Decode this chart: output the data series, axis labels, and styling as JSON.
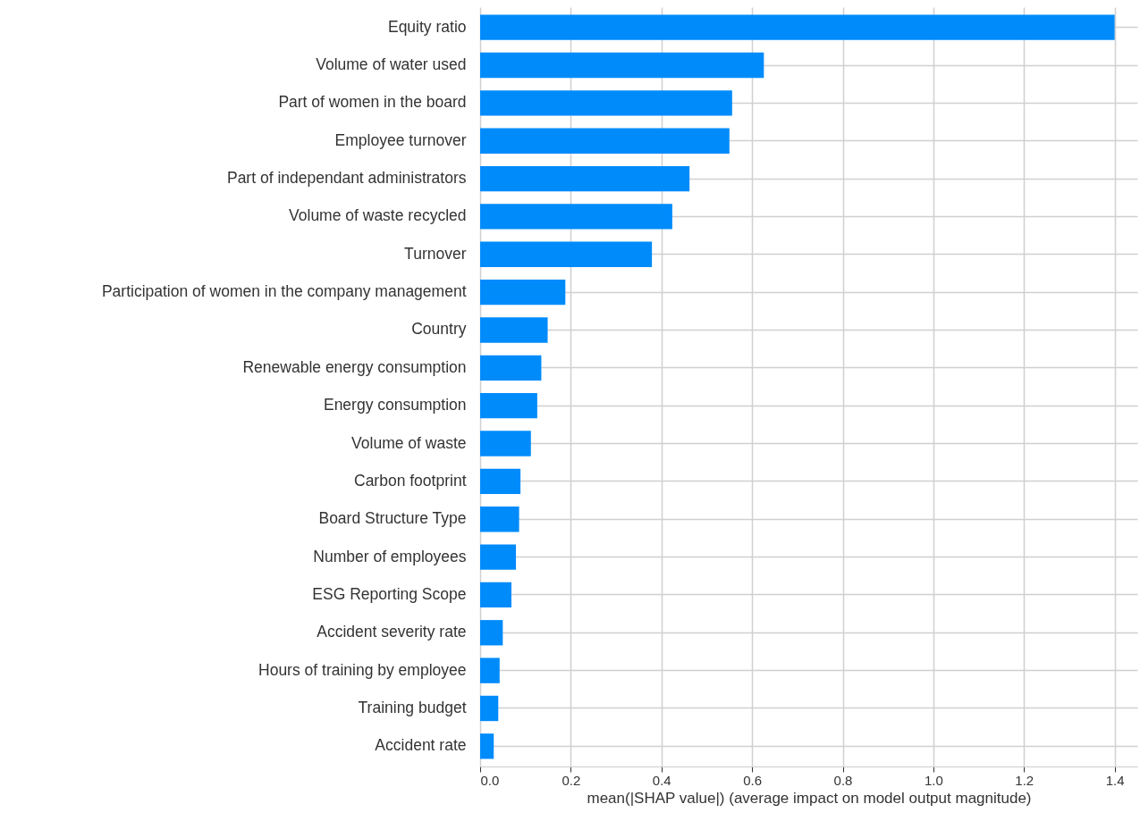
{
  "chart_data": {
    "type": "bar",
    "orientation": "horizontal",
    "xlabel": "mean(|SHAP value|) (average impact on model output magnitude)",
    "categories": [
      "Equity ratio",
      "Volume of water used",
      "Part of women in the board",
      "Employee turnover",
      "Part of independant administrators",
      "Volume of waste recycled",
      "Turnover",
      "Participation of women in the company management",
      "Country",
      "Renewable energy consumption",
      "Energy consumption",
      "Volume of waste",
      "Carbon footprint",
      "Board Structure Type",
      "Number of employees",
      "ESG Reporting Scope",
      "Accident severity rate",
      "Hours of training by employee",
      "Training budget",
      "Accident rate"
    ],
    "values": [
      1.4,
      0.626,
      0.556,
      0.55,
      0.462,
      0.424,
      0.379,
      0.188,
      0.149,
      0.135,
      0.126,
      0.112,
      0.089,
      0.086,
      0.079,
      0.069,
      0.05,
      0.043,
      0.04,
      0.03
    ],
    "color": "#008bfb",
    "xlim": [
      0,
      1.45
    ],
    "xticks": [
      {
        "value": 0,
        "label": "0.0"
      },
      0.2,
      0.4,
      0.6,
      0.8,
      {
        "value": 1,
        "label": "1.0"
      },
      1.2,
      1.4
    ],
    "grid": true
  }
}
